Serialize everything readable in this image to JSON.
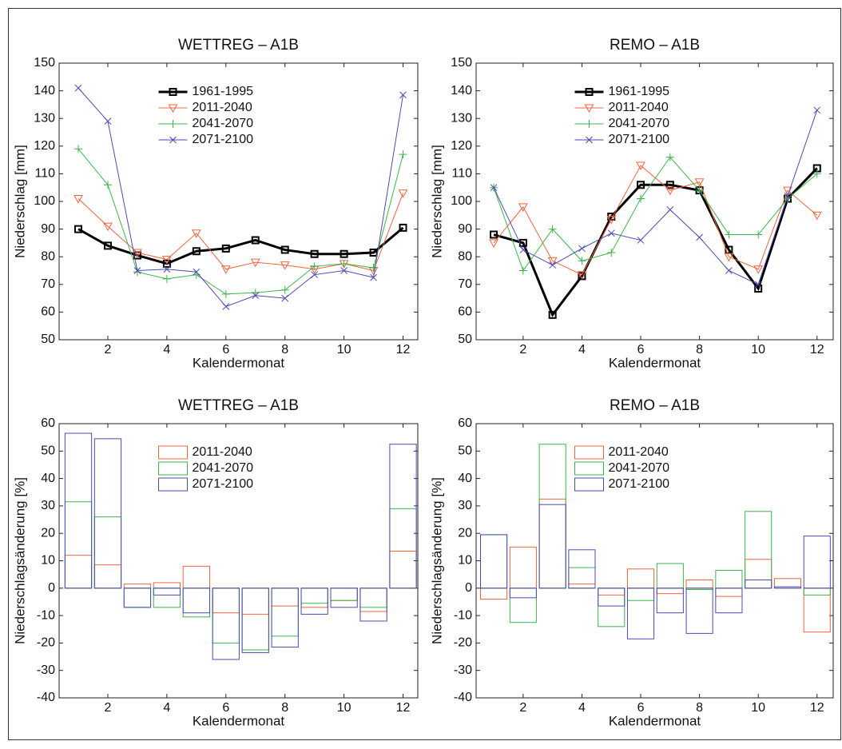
{
  "chart_data": [
    {
      "type": "line",
      "title": "WETTREG – A1B",
      "x_label": "Kalendermonat",
      "y_label": "Niederschlag [mm]",
      "x": [
        1,
        2,
        3,
        4,
        5,
        6,
        7,
        8,
        9,
        10,
        11,
        12
      ],
      "xlim": [
        0.35,
        12.5
      ],
      "xticks": [
        2,
        4,
        6,
        8,
        10,
        12
      ],
      "ylim": [
        50,
        150
      ],
      "yticks": [
        50,
        60,
        70,
        80,
        90,
        100,
        110,
        120,
        130,
        140,
        150
      ],
      "legend": "upper center",
      "series": [
        {
          "name": "1961-1995",
          "color": "#000000",
          "marker": "square",
          "values": [
            90,
            84,
            80.5,
            77.5,
            82,
            83,
            86,
            82.5,
            81,
            81,
            81.5,
            90.5
          ]
        },
        {
          "name": "2011-2040",
          "color": "#f0643c",
          "marker": "triangle-down",
          "values": [
            101,
            91,
            81.5,
            79,
            88.5,
            75.5,
            78,
            77,
            75.5,
            77.5,
            75,
            103
          ]
        },
        {
          "name": "2041-2070",
          "color": "#3cb44b",
          "marker": "plus",
          "values": [
            119,
            106,
            74.5,
            72,
            73.5,
            66.5,
            67,
            68,
            76.5,
            77.5,
            76,
            117
          ]
        },
        {
          "name": "2071-2100",
          "color": "#4b4bb4",
          "marker": "x",
          "values": [
            141,
            129,
            75,
            75.5,
            74.5,
            62,
            66,
            65,
            73.5,
            75,
            72.5,
            138.5
          ]
        }
      ]
    },
    {
      "type": "line",
      "title": "REMO – A1B",
      "x_label": "Kalendermonat",
      "y_label": "Niederschlag [mm]",
      "x": [
        1,
        2,
        3,
        4,
        5,
        6,
        7,
        8,
        9,
        10,
        11,
        12
      ],
      "xlim": [
        0.4,
        12.55
      ],
      "xticks": [
        2,
        4,
        6,
        8,
        10,
        12
      ],
      "ylim": [
        50,
        150
      ],
      "yticks": [
        50,
        60,
        70,
        80,
        90,
        100,
        110,
        120,
        130,
        140,
        150
      ],
      "legend": "upper center",
      "series": [
        {
          "name": "1961-1995",
          "color": "#000000",
          "marker": "square",
          "values": [
            88,
            85,
            59,
            73,
            94.5,
            106,
            106,
            104,
            82.5,
            68.5,
            101,
            112
          ]
        },
        {
          "name": "2011-2040",
          "color": "#f0643c",
          "marker": "triangle-down",
          "values": [
            85,
            98,
            78.5,
            73.5,
            93.5,
            113,
            104,
            107,
            80,
            75.5,
            104,
            95
          ]
        },
        {
          "name": "2041-2070",
          "color": "#3cb44b",
          "marker": "plus",
          "values": [
            105,
            75,
            90,
            78.5,
            81.5,
            101,
            116,
            104,
            88,
            88,
            101,
            110
          ]
        },
        {
          "name": "2071-2100",
          "color": "#4b4bb4",
          "marker": "x",
          "values": [
            105,
            82.5,
            77,
            83,
            88.5,
            86,
            97,
            87,
            75,
            70,
            102,
            133
          ]
        }
      ]
    },
    {
      "type": "bar",
      "title": "WETTREG – A1B",
      "x_label": "Kalendermonat",
      "y_label": "Niederschlagsänderung [%]",
      "x": [
        1,
        2,
        3,
        4,
        5,
        6,
        7,
        8,
        9,
        10,
        11,
        12
      ],
      "xlim": [
        0.35,
        12.5
      ],
      "xticks": [
        2,
        4,
        6,
        8,
        10,
        12
      ],
      "ylim": [
        -40,
        60
      ],
      "yticks": [
        -40,
        -30,
        -20,
        -10,
        0,
        10,
        20,
        30,
        40,
        50,
        60
      ],
      "legend": "upper center",
      "series": [
        {
          "name": "2011-2040",
          "color": "#f0643c",
          "values": [
            12,
            8.5,
            1.5,
            2,
            8,
            -9,
            -9.5,
            -6.5,
            -7,
            -4.5,
            -8.5,
            13.5
          ]
        },
        {
          "name": "2041-2070",
          "color": "#3cb44b",
          "values": [
            31.5,
            26,
            -7,
            -7,
            -10.5,
            -20,
            -22.5,
            -17.5,
            -5.5,
            -4.5,
            -7,
            29
          ]
        },
        {
          "name": "2071-2100",
          "color": "#4b4bb4",
          "values": [
            56.5,
            54.5,
            -7,
            -2.5,
            -9,
            -26,
            -23.5,
            -21.5,
            -9.5,
            -7,
            -12,
            52.5
          ]
        }
      ]
    },
    {
      "type": "bar",
      "title": "REMO – A1B",
      "x_label": "Kalendermonat",
      "y_label": "Niederschlagsänderung [%]",
      "x": [
        1,
        2,
        3,
        4,
        5,
        6,
        7,
        8,
        9,
        10,
        11,
        12
      ],
      "xlim": [
        0.4,
        12.55
      ],
      "xticks": [
        2,
        4,
        6,
        8,
        10,
        12
      ],
      "ylim": [
        -40,
        60
      ],
      "yticks": [
        -40,
        -30,
        -20,
        -10,
        0,
        10,
        20,
        30,
        40,
        50,
        60
      ],
      "legend": "upper center",
      "series": [
        {
          "name": "2011-2040",
          "color": "#f0643c",
          "values": [
            -4,
            15,
            32.5,
            1.5,
            -2.5,
            7,
            -2,
            3,
            -3,
            10.5,
            3.5,
            -16
          ]
        },
        {
          "name": "2041-2070",
          "color": "#3cb44b",
          "values": [
            19.5,
            -12.5,
            52.5,
            7.5,
            -14,
            -4.5,
            9,
            -0.5,
            6.5,
            28,
            0,
            -2.5
          ]
        },
        {
          "name": "2071-2100",
          "color": "#4b4bb4",
          "values": [
            19.5,
            -3.5,
            30.5,
            14,
            -6.5,
            -18.5,
            -9,
            -16.5,
            -9,
            3,
            0.5,
            19
          ]
        }
      ]
    }
  ]
}
